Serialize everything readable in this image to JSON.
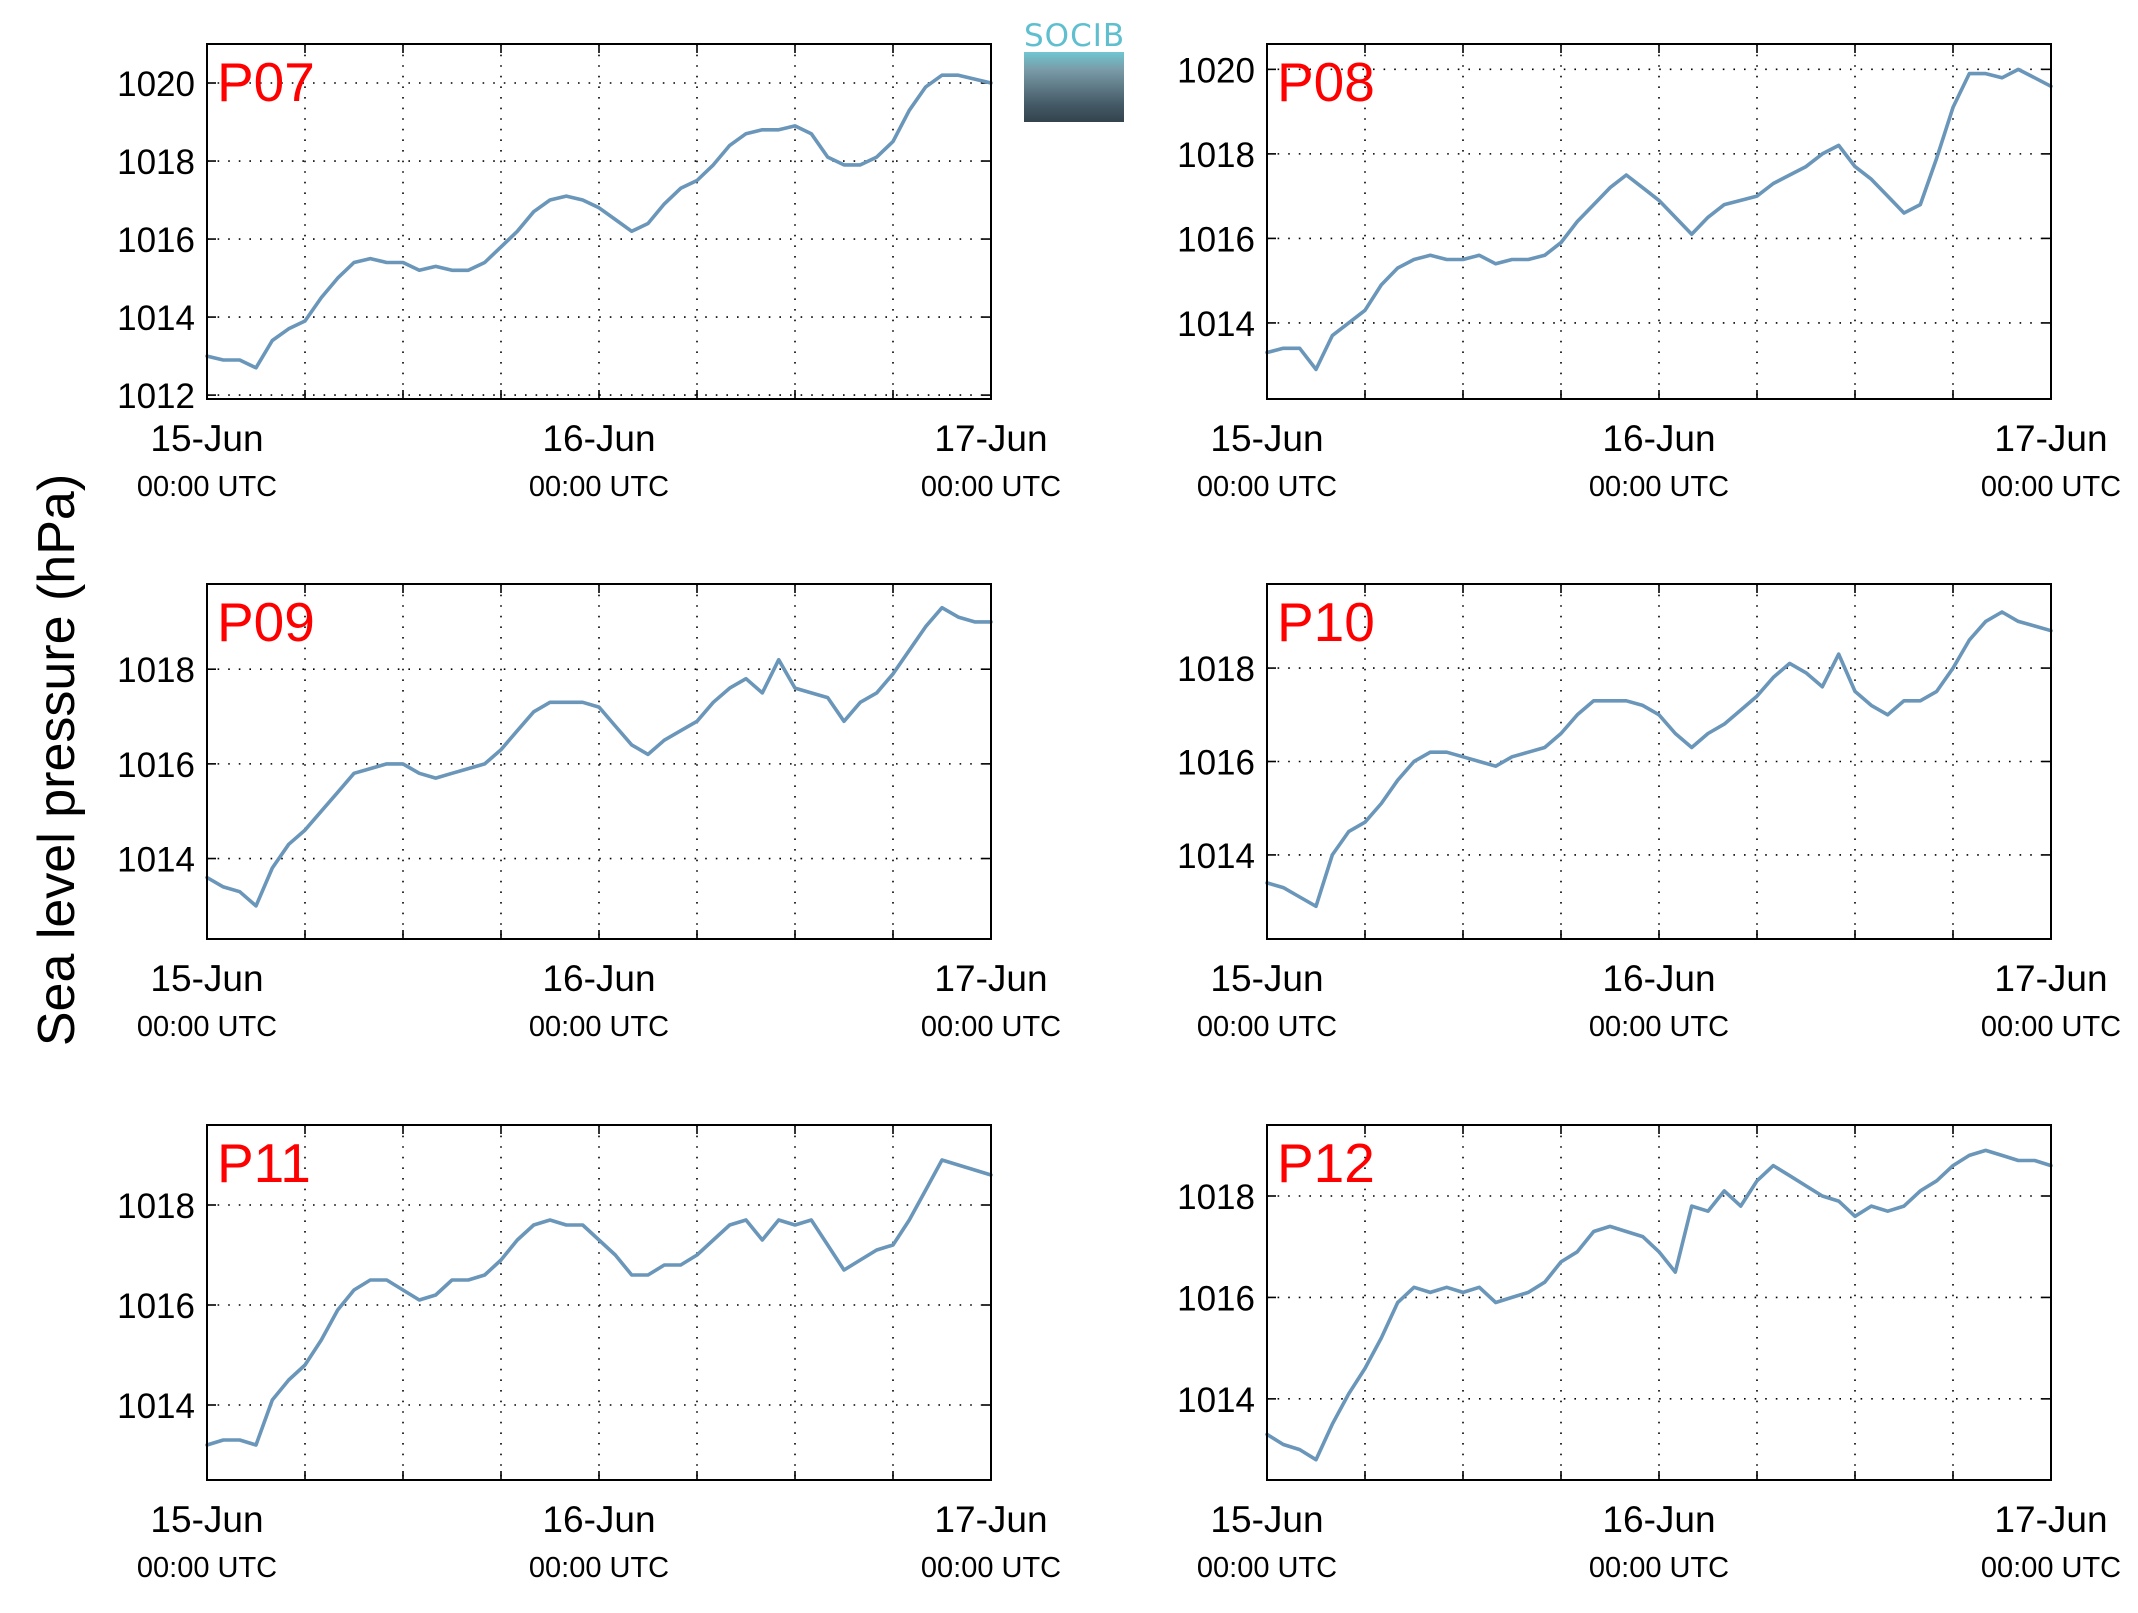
{
  "figure": {
    "ylabel": "Sea level pressure (hPa)",
    "logo_text": "SOCIB",
    "line_color": "#6a96ba",
    "station_label_color": "#ff0000"
  },
  "chart_data": [
    {
      "type": "line",
      "title": "P07",
      "xlim": [
        0,
        48
      ],
      "ylim": [
        1011.9,
        1021.0
      ],
      "yticks": [
        1012,
        1014,
        1016,
        1018,
        1020
      ],
      "xticks": [
        {
          "x": 0,
          "line1": "15-Jun",
          "line2": "00:00 UTC"
        },
        {
          "x": 24,
          "line1": "16-Jun",
          "line2": "00:00 UTC"
        },
        {
          "x": 48,
          "line1": "17-Jun",
          "line2": "00:00 UTC"
        }
      ],
      "x": [
        0,
        1,
        2,
        3,
        4,
        5,
        6,
        7,
        8,
        9,
        10,
        11,
        12,
        13,
        14,
        15,
        16,
        17,
        18,
        19,
        20,
        21,
        22,
        23,
        24,
        25,
        26,
        27,
        28,
        29,
        30,
        31,
        32,
        33,
        34,
        35,
        36,
        37,
        38,
        39,
        40,
        41,
        42,
        43,
        44,
        45,
        46,
        47,
        48
      ],
      "y": [
        1013.0,
        1012.9,
        1012.9,
        1012.7,
        1013.4,
        1013.7,
        1013.9,
        1014.5,
        1015.0,
        1015.4,
        1015.5,
        1015.4,
        1015.4,
        1015.2,
        1015.3,
        1015.2,
        1015.2,
        1015.4,
        1015.8,
        1016.2,
        1016.7,
        1017.0,
        1017.1,
        1017.0,
        1016.8,
        1016.5,
        1016.2,
        1016.4,
        1016.9,
        1017.3,
        1017.5,
        1017.9,
        1018.4,
        1018.7,
        1018.8,
        1018.8,
        1018.9,
        1018.7,
        1018.1,
        1017.9,
        1017.9,
        1018.1,
        1018.5,
        1019.3,
        1019.9,
        1020.2,
        1020.2,
        1020.1,
        1020.0
      ]
    },
    {
      "type": "line",
      "title": "P08",
      "xlim": [
        0,
        48
      ],
      "ylim": [
        1012.2,
        1020.6
      ],
      "yticks": [
        1014,
        1016,
        1018,
        1020
      ],
      "xticks": [
        {
          "x": 0,
          "line1": "15-Jun",
          "line2": "00:00 UTC"
        },
        {
          "x": 24,
          "line1": "16-Jun",
          "line2": "00:00 UTC"
        },
        {
          "x": 48,
          "line1": "17-Jun",
          "line2": "00:00 UTC"
        }
      ],
      "x": [
        0,
        1,
        2,
        3,
        4,
        5,
        6,
        7,
        8,
        9,
        10,
        11,
        12,
        13,
        14,
        15,
        16,
        17,
        18,
        19,
        20,
        21,
        22,
        23,
        24,
        25,
        26,
        27,
        28,
        29,
        30,
        31,
        32,
        33,
        34,
        35,
        36,
        37,
        38,
        39,
        40,
        41,
        42,
        43,
        44,
        45,
        46,
        47,
        48
      ],
      "y": [
        1013.3,
        1013.4,
        1013.4,
        1012.9,
        1013.7,
        1014.0,
        1014.3,
        1014.9,
        1015.3,
        1015.5,
        1015.6,
        1015.5,
        1015.5,
        1015.6,
        1015.4,
        1015.5,
        1015.5,
        1015.6,
        1015.9,
        1016.4,
        1016.8,
        1017.2,
        1017.5,
        1017.2,
        1016.9,
        1016.5,
        1016.1,
        1016.5,
        1016.8,
        1016.9,
        1017.0,
        1017.3,
        1017.5,
        1017.7,
        1018.0,
        1018.2,
        1017.7,
        1017.4,
        1017.0,
        1016.6,
        1016.8,
        1017.9,
        1019.1,
        1019.9,
        1019.9,
        1019.8,
        1020.0,
        1019.8,
        1019.6
      ]
    },
    {
      "type": "line",
      "title": "P09",
      "xlim": [
        0,
        48
      ],
      "ylim": [
        1012.3,
        1019.8
      ],
      "yticks": [
        1014,
        1016,
        1018
      ],
      "xticks": [
        {
          "x": 0,
          "line1": "15-Jun",
          "line2": "00:00 UTC"
        },
        {
          "x": 24,
          "line1": "16-Jun",
          "line2": "00:00 UTC"
        },
        {
          "x": 48,
          "line1": "17-Jun",
          "line2": "00:00 UTC"
        }
      ],
      "x": [
        0,
        1,
        2,
        3,
        4,
        5,
        6,
        7,
        8,
        9,
        10,
        11,
        12,
        13,
        14,
        15,
        16,
        17,
        18,
        19,
        20,
        21,
        22,
        23,
        24,
        25,
        26,
        27,
        28,
        29,
        30,
        31,
        32,
        33,
        34,
        35,
        36,
        37,
        38,
        39,
        40,
        41,
        42,
        43,
        44,
        45,
        46,
        47,
        48
      ],
      "y": [
        1013.6,
        1013.4,
        1013.3,
        1013.0,
        1013.8,
        1014.3,
        1014.6,
        1015.0,
        1015.4,
        1015.8,
        1015.9,
        1016.0,
        1016.0,
        1015.8,
        1015.7,
        1015.8,
        1015.9,
        1016.0,
        1016.3,
        1016.7,
        1017.1,
        1017.3,
        1017.3,
        1017.3,
        1017.2,
        1016.8,
        1016.4,
        1016.2,
        1016.5,
        1016.7,
        1016.9,
        1017.3,
        1017.6,
        1017.8,
        1017.5,
        1018.2,
        1017.6,
        1017.5,
        1017.4,
        1016.9,
        1017.3,
        1017.5,
        1017.9,
        1018.4,
        1018.9,
        1019.3,
        1019.1,
        1019.0,
        1019.0
      ]
    },
    {
      "type": "line",
      "title": "P10",
      "xlim": [
        0,
        48
      ],
      "ylim": [
        1012.2,
        1019.8
      ],
      "yticks": [
        1014,
        1016,
        1018
      ],
      "xticks": [
        {
          "x": 0,
          "line1": "15-Jun",
          "line2": "00:00 UTC"
        },
        {
          "x": 24,
          "line1": "16-Jun",
          "line2": "00:00 UTC"
        },
        {
          "x": 48,
          "line1": "17-Jun",
          "line2": "00:00 UTC"
        }
      ],
      "x": [
        0,
        1,
        2,
        3,
        4,
        5,
        6,
        7,
        8,
        9,
        10,
        11,
        12,
        13,
        14,
        15,
        16,
        17,
        18,
        19,
        20,
        21,
        22,
        23,
        24,
        25,
        26,
        27,
        28,
        29,
        30,
        31,
        32,
        33,
        34,
        35,
        36,
        37,
        38,
        39,
        40,
        41,
        42,
        43,
        44,
        45,
        46,
        47,
        48
      ],
      "y": [
        1013.4,
        1013.3,
        1013.1,
        1012.9,
        1014.0,
        1014.5,
        1014.7,
        1015.1,
        1015.6,
        1016.0,
        1016.2,
        1016.2,
        1016.1,
        1016.0,
        1015.9,
        1016.1,
        1016.2,
        1016.3,
        1016.6,
        1017.0,
        1017.3,
        1017.3,
        1017.3,
        1017.2,
        1017.0,
        1016.6,
        1016.3,
        1016.6,
        1016.8,
        1017.1,
        1017.4,
        1017.8,
        1018.1,
        1017.9,
        1017.6,
        1018.3,
        1017.5,
        1017.2,
        1017.0,
        1017.3,
        1017.3,
        1017.5,
        1018.0,
        1018.6,
        1019.0,
        1019.2,
        1019.0,
        1018.9,
        1018.8
      ]
    },
    {
      "type": "line",
      "title": "P11",
      "xlim": [
        0,
        48
      ],
      "ylim": [
        1012.5,
        1019.6
      ],
      "yticks": [
        1014,
        1016,
        1018
      ],
      "xticks": [
        {
          "x": 0,
          "line1": "15-Jun",
          "line2": "00:00 UTC"
        },
        {
          "x": 24,
          "line1": "16-Jun",
          "line2": "00:00 UTC"
        },
        {
          "x": 48,
          "line1": "17-Jun",
          "line2": "00:00 UTC"
        }
      ],
      "x": [
        0,
        1,
        2,
        3,
        4,
        5,
        6,
        7,
        8,
        9,
        10,
        11,
        12,
        13,
        14,
        15,
        16,
        17,
        18,
        19,
        20,
        21,
        22,
        23,
        24,
        25,
        26,
        27,
        28,
        29,
        30,
        31,
        32,
        33,
        34,
        35,
        36,
        37,
        38,
        39,
        40,
        41,
        42,
        43,
        44,
        45,
        46,
        47,
        48
      ],
      "y": [
        1013.2,
        1013.3,
        1013.3,
        1013.2,
        1014.1,
        1014.5,
        1014.8,
        1015.3,
        1015.9,
        1016.3,
        1016.5,
        1016.5,
        1016.3,
        1016.1,
        1016.2,
        1016.5,
        1016.5,
        1016.6,
        1016.9,
        1017.3,
        1017.6,
        1017.7,
        1017.6,
        1017.6,
        1017.3,
        1017.0,
        1016.6,
        1016.6,
        1016.8,
        1016.8,
        1017.0,
        1017.3,
        1017.6,
        1017.7,
        1017.3,
        1017.7,
        1017.6,
        1017.7,
        1017.2,
        1016.7,
        1016.9,
        1017.1,
        1017.2,
        1017.7,
        1018.3,
        1018.9,
        1018.8,
        1018.7,
        1018.6
      ]
    },
    {
      "type": "line",
      "title": "P12",
      "xlim": [
        0,
        48
      ],
      "ylim": [
        1012.4,
        1019.4
      ],
      "yticks": [
        1014,
        1016,
        1018
      ],
      "xticks": [
        {
          "x": 0,
          "line1": "15-Jun",
          "line2": "00:00 UTC"
        },
        {
          "x": 24,
          "line1": "16-Jun",
          "line2": "00:00 UTC"
        },
        {
          "x": 48,
          "line1": "17-Jun",
          "line2": "00:00 UTC"
        }
      ],
      "x": [
        0,
        1,
        2,
        3,
        4,
        5,
        6,
        7,
        8,
        9,
        10,
        11,
        12,
        13,
        14,
        15,
        16,
        17,
        18,
        19,
        20,
        21,
        22,
        23,
        24,
        25,
        26,
        27,
        28,
        29,
        30,
        31,
        32,
        33,
        34,
        35,
        36,
        37,
        38,
        39,
        40,
        41,
        42,
        43,
        44,
        45,
        46,
        47,
        48
      ],
      "y": [
        1013.3,
        1013.1,
        1013.0,
        1012.8,
        1013.5,
        1014.1,
        1014.6,
        1015.2,
        1015.9,
        1016.2,
        1016.1,
        1016.2,
        1016.1,
        1016.2,
        1015.9,
        1016.0,
        1016.1,
        1016.3,
        1016.7,
        1016.9,
        1017.3,
        1017.4,
        1017.3,
        1017.2,
        1016.9,
        1016.5,
        1017.8,
        1017.7,
        1018.1,
        1017.8,
        1018.3,
        1018.6,
        1018.4,
        1018.2,
        1018.0,
        1017.9,
        1017.6,
        1017.8,
        1017.7,
        1017.8,
        1018.1,
        1018.3,
        1018.6,
        1018.8,
        1018.9,
        1018.8,
        1018.7,
        1018.7,
        1018.6
      ]
    }
  ]
}
